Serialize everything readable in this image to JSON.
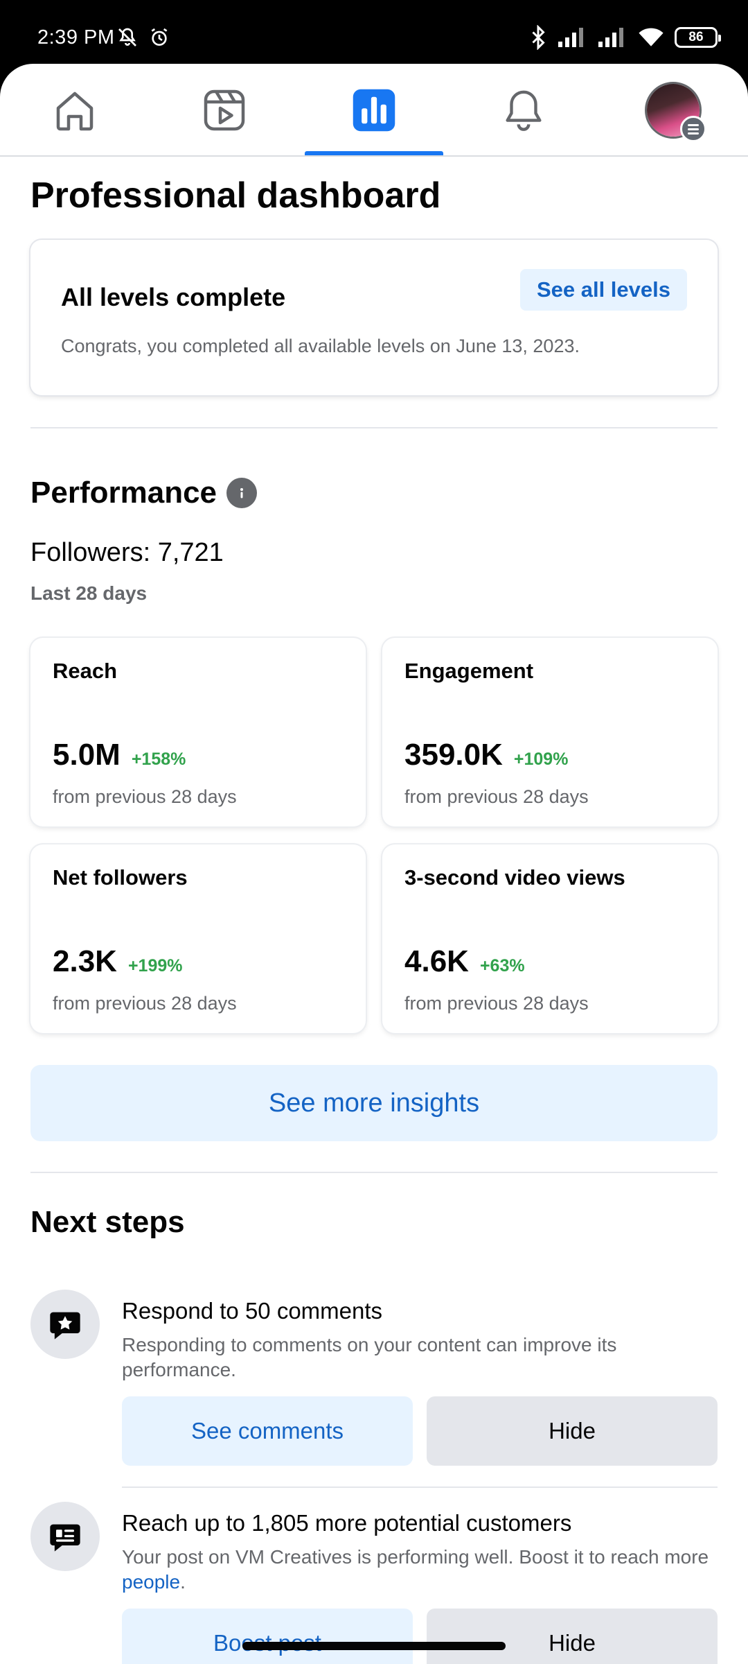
{
  "status_bar": {
    "time": "2:39 PM",
    "battery": "86"
  },
  "tabs": [
    {
      "name": "home",
      "icon": "home-icon"
    },
    {
      "name": "video",
      "icon": "video-icon"
    },
    {
      "name": "dashboard",
      "icon": "bar-chart-icon",
      "active": true
    },
    {
      "name": "notifications",
      "icon": "bell-icon"
    },
    {
      "name": "profile",
      "icon": "avatar"
    }
  ],
  "page": {
    "title": "Professional dashboard"
  },
  "levels": {
    "title": "All levels complete",
    "button": "See all levels",
    "description": "Congrats, you completed all available levels on June 13, 2023."
  },
  "performance": {
    "title": "Performance",
    "followers": "Followers: 7,721",
    "period": "Last 28 days",
    "cards": [
      {
        "label": "Reach",
        "value": "5.0M",
        "change": "+158%",
        "sub": "from previous 28 days"
      },
      {
        "label": "Engagement",
        "value": "359.0K",
        "change": "+109%",
        "sub": "from previous 28 days"
      },
      {
        "label": "Net followers",
        "value": "2.3K",
        "change": "+199%",
        "sub": "from previous 28 days"
      },
      {
        "label": "3-second video views",
        "value": "4.6K",
        "change": "+63%",
        "sub": "from previous 28 days"
      }
    ],
    "insights_button": "See more insights"
  },
  "next_steps": {
    "title": "Next steps",
    "items": [
      {
        "title": "Respond to 50 comments",
        "description": "Responding to comments on your content can improve its performance.",
        "primary_button": "See comments",
        "secondary_button": "Hide"
      },
      {
        "title": "Reach up to 1,805 more potential customers",
        "description": "Your post on VM Creatives is performing well. Boost it to reach more ",
        "link": "people",
        "link_suffix": ".",
        "primary_button": "Boost post",
        "secondary_button": "Hide"
      }
    ]
  },
  "colors": {
    "accent": "#1877f2",
    "link": "#1463c4",
    "positive": "#31a24c",
    "secondary_text": "#65676b"
  }
}
